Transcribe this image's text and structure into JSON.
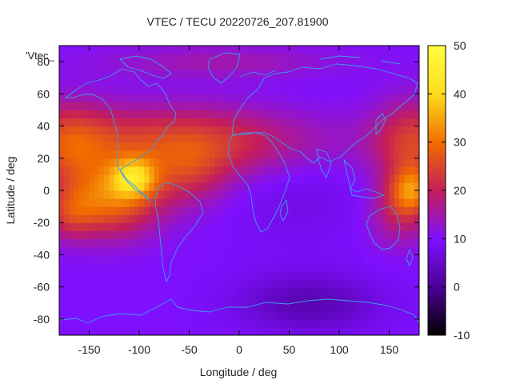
{
  "chart_data": {
    "type": "heatmap",
    "title": "VTEC / TECU 20220726_207.81900",
    "key_label": "'Vtec_",
    "xlabel": "Longitude / deg",
    "ylabel": "Latitude / deg",
    "xlim": [
      -180,
      180
    ],
    "ylim": [
      -90,
      90
    ],
    "x_ticks": [
      -150,
      -100,
      -50,
      0,
      50,
      100,
      150
    ],
    "y_ticks": [
      -80,
      -60,
      -40,
      -20,
      0,
      20,
      40,
      60,
      80
    ],
    "colorbar": {
      "min": -10,
      "max": 50,
      "ticks": [
        -10,
        0,
        10,
        20,
        30,
        40,
        50
      ],
      "palette": [
        "#000000",
        "#4a0091",
        "#7e10ff",
        "#c41e5a",
        "#f06a00",
        "#ffdb1a",
        "#ffff40"
      ]
    },
    "grid": false,
    "overlay": "coastlines",
    "coastline_color": "#3aa0e8",
    "field_features": {
      "background_vtec": 10,
      "equatorial_max": {
        "lon": -105,
        "lat": 8,
        "vtec": 48
      },
      "pacific_west_max": {
        "lon": 172,
        "lat": 0,
        "vtec": 38
      },
      "north_band": {
        "lat_center": 30,
        "vtec": 25
      },
      "southern_min": {
        "lon": 70,
        "lat": -70,
        "vtec": 3
      }
    }
  }
}
